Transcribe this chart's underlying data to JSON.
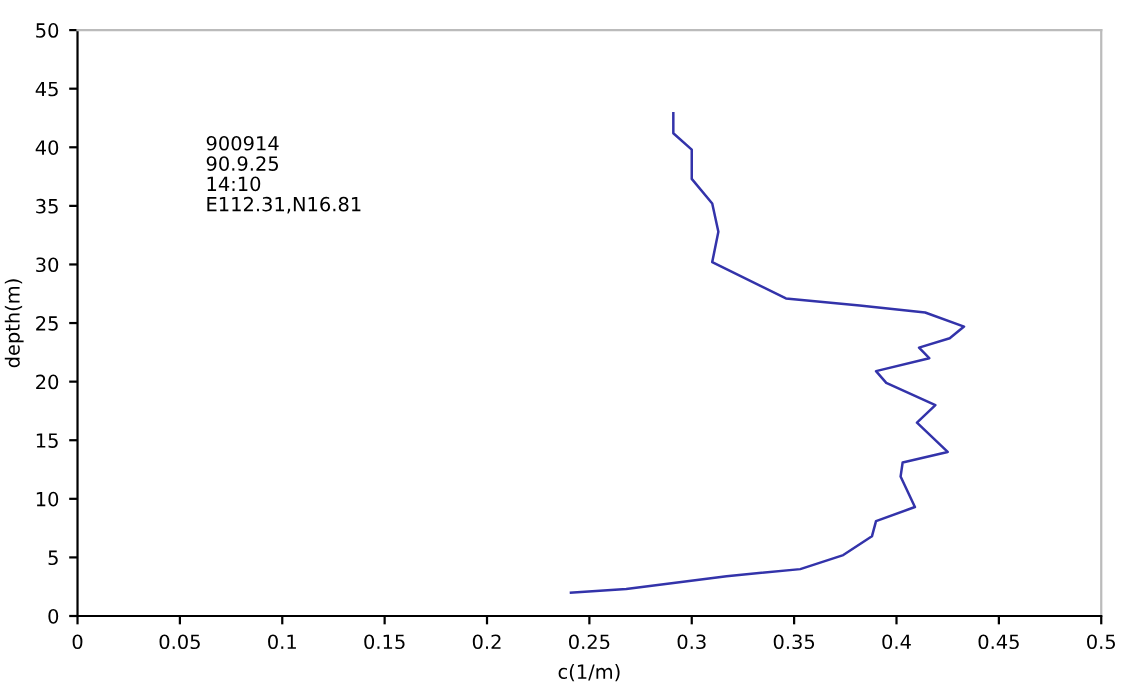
{
  "chart_data": {
    "type": "line",
    "xlabel": "c(1/m)",
    "ylabel": "depth(m)",
    "annotations": [
      "900914\n90.9.25\n14:10\nE112.31,N16.81"
    ],
    "series": [
      {
        "color": "#3333aa",
        "x": [
          0.291,
          0.291,
          0.3,
          0.3,
          0.31,
          0.313,
          0.31,
          0.346,
          0.382,
          0.414,
          0.433,
          0.426,
          0.411,
          0.416,
          0.39,
          0.395,
          0.419,
          0.41,
          0.425,
          0.403,
          0.402,
          0.409,
          0.39,
          0.388,
          0.374,
          0.353,
          0.317,
          0.268,
          0.241
        ],
        "values": [
          42.9,
          41.2,
          39.8,
          37.3,
          35.2,
          32.8,
          30.2,
          27.1,
          26.5,
          25.9,
          24.7,
          23.7,
          22.9,
          22.0,
          20.9,
          19.9,
          18.0,
          16.5,
          14.0,
          13.1,
          11.9,
          9.3,
          8.1,
          6.8,
          5.2,
          4.0,
          3.4,
          2.3,
          2.0
        ]
      }
    ],
    "xlim": [
      0,
      0.5
    ],
    "xticks": [
      0,
      0.05,
      0.1,
      0.15,
      0.2,
      0.25,
      0.3,
      0.35,
      0.4,
      0.45,
      0.5
    ],
    "ylim": [
      0,
      50
    ],
    "yticks": [
      0,
      5,
      10,
      15,
      20,
      25,
      30,
      35,
      40,
      45,
      50
    ],
    "grid": false,
    "legend": false,
    "marker": "none",
    "line_style": "solid"
  }
}
